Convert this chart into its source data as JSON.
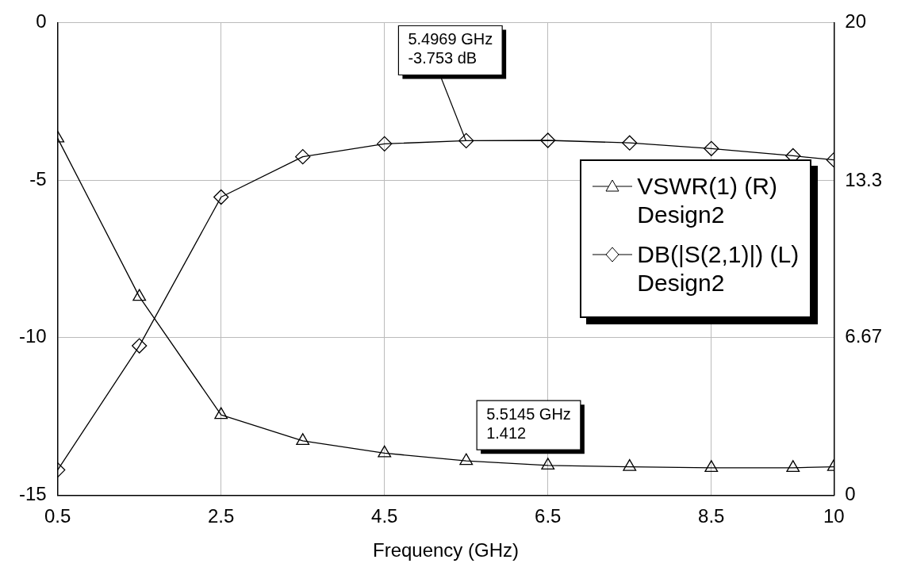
{
  "chart_data": {
    "type": "line",
    "xlabel": "Frequency (GHz)",
    "x": [
      0.5,
      1.5,
      2.5,
      3.5,
      4.5,
      5.5,
      6.5,
      7.5,
      8.5,
      9.5,
      10
    ],
    "xlim": [
      0.5,
      10
    ],
    "xticks": [
      0.5,
      2.5,
      4.5,
      6.5,
      8.5,
      10
    ],
    "ylim": [
      -15,
      0
    ],
    "yticks": [
      -15,
      -10,
      -5,
      0
    ],
    "y2lim": [
      0,
      20
    ],
    "y2ticks": [
      0,
      6.67,
      13.3,
      20
    ],
    "grid": true,
    "legend": "right",
    "line_style": "solid",
    "series": [
      {
        "name": "VSWR(1) (R)\nDesign2",
        "color": "#000000",
        "axis": "y2",
        "marker": "triangle",
        "values": [
          15.1,
          8.4,
          3.4,
          2.3,
          1.78,
          1.45,
          1.26,
          1.2,
          1.16,
          1.16,
          1.2
        ]
      },
      {
        "name": "DB(|S(2,1)|) (L)\nDesign2",
        "color": "#000000",
        "axis": "y",
        "marker": "diamond",
        "values": [
          -14.2,
          -10.26,
          -5.54,
          -4.26,
          -3.85,
          -3.75,
          -3.74,
          -3.82,
          -4.0,
          -4.23,
          -4.36
        ]
      }
    ],
    "annotations": [
      {
        "text": "5.4969 GHz\n-3.753 dB",
        "x": 5.4969,
        "y": -3.753
      },
      "5.5145 GHz\n1.412"
    ]
  }
}
